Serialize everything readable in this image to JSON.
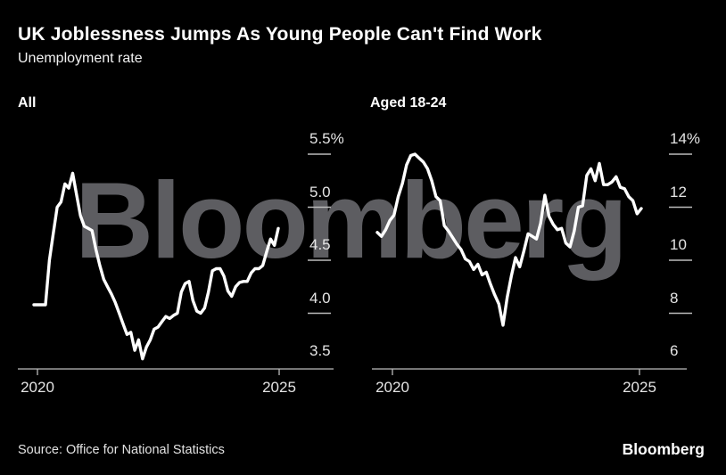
{
  "header": {
    "title": "UK Joblessness Jumps As Young People Can't Find Work",
    "subtitle": "Unemployment rate"
  },
  "watermark": "Bloomberg",
  "footer": {
    "source": "Source: Office for National Statistics",
    "logo": "Bloomberg"
  },
  "colors": {
    "background": "#000000",
    "line": "#ffffff",
    "axis": "#bcbcbc",
    "tick_label": "#e4e4e4",
    "watermark": "#5d5d61"
  },
  "chart_data": [
    {
      "type": "line",
      "title": "All",
      "unit": "%",
      "x_tick_labels": [
        "2020",
        "2025"
      ],
      "x_tick_years": [
        2020,
        2025
      ],
      "x_range_years": [
        2019.92,
        2025.33
      ],
      "y_tick_labels": [
        "5.5%",
        "5.0",
        "4.5",
        "4.0",
        "3.5"
      ],
      "y_tick_values": [
        5.5,
        5.0,
        4.5,
        4.0,
        3.5
      ],
      "ylim": [
        3.5,
        5.5
      ],
      "grid": false,
      "legend": "none",
      "values": [
        4.08,
        4.08,
        4.08,
        4.08,
        4.5,
        4.75,
        5.0,
        5.05,
        5.22,
        5.18,
        5.32,
        5.12,
        4.92,
        4.82,
        4.8,
        4.78,
        4.6,
        4.45,
        4.32,
        4.25,
        4.18,
        4.1,
        4.0,
        3.9,
        3.8,
        3.82,
        3.65,
        3.75,
        3.57,
        3.68,
        3.75,
        3.85,
        3.87,
        3.92,
        3.97,
        3.95,
        3.98,
        4.0,
        4.2,
        4.28,
        4.3,
        4.12,
        4.02,
        4.0,
        4.05,
        4.2,
        4.4,
        4.42,
        4.42,
        4.35,
        4.21,
        4.16,
        4.25,
        4.29,
        4.3,
        4.3,
        4.38,
        4.42,
        4.42,
        4.45,
        4.58,
        4.7,
        4.64,
        4.8
      ]
    },
    {
      "type": "line",
      "title": "Aged 18-24",
      "unit": "%",
      "x_tick_labels": [
        "2020",
        "2025"
      ],
      "x_tick_years": [
        2020,
        2025
      ],
      "x_range_years": [
        2019.92,
        2025.33
      ],
      "y_tick_labels": [
        "14%",
        "12",
        "10",
        "8",
        "6"
      ],
      "y_tick_values": [
        14,
        12,
        10,
        8,
        6
      ],
      "ylim": [
        6,
        14
      ],
      "grid": false,
      "legend": "none",
      "values": [
        11.05,
        10.9,
        11.15,
        11.5,
        11.7,
        12.4,
        12.9,
        13.6,
        13.95,
        14.0,
        13.85,
        13.7,
        13.45,
        13.0,
        12.4,
        12.25,
        11.3,
        11.1,
        10.85,
        10.6,
        10.4,
        10.05,
        9.95,
        9.65,
        9.85,
        9.45,
        9.55,
        9.1,
        8.7,
        8.35,
        7.55,
        8.6,
        9.4,
        10.1,
        9.75,
        10.35,
        11.0,
        10.9,
        10.8,
        11.4,
        12.45,
        11.65,
        11.35,
        11.15,
        11.2,
        10.65,
        10.5,
        11.1,
        12.0,
        12.05,
        13.2,
        13.45,
        13.0,
        13.65,
        12.85,
        12.85,
        12.95,
        13.15,
        12.75,
        12.7,
        12.4,
        12.25,
        11.75,
        11.95
      ]
    }
  ]
}
